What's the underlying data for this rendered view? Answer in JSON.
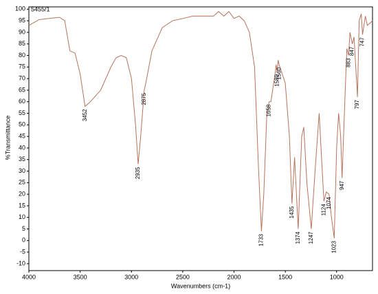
{
  "chart_data": {
    "type": "line",
    "title": "5455/1",
    "title_color": "#d0312d",
    "x_label": "Wavenumbers (cm-1)",
    "y_label": "%Transmittance",
    "color": "#b5735a",
    "x": [
      4000,
      3900,
      3800,
      3700,
      3650,
      3600,
      3550,
      3500,
      3452,
      3400,
      3300,
      3200,
      3150,
      3100,
      3050,
      3000,
      2960,
      2935,
      2910,
      2875,
      2860,
      2800,
      2700,
      2600,
      2500,
      2400,
      2300,
      2200,
      2150,
      2100,
      2050,
      2000,
      1950,
      1900,
      1850,
      1800,
      1760,
      1733,
      1710,
      1680,
      1658,
      1640,
      1600,
      1590,
      1580,
      1570,
      1560,
      1500,
      1460,
      1435,
      1410,
      1374,
      1340,
      1320,
      1290,
      1247,
      1210,
      1170,
      1140,
      1124,
      1100,
      1074,
      1050,
      1023,
      1000,
      980,
      960,
      947,
      920,
      900,
      883,
      870,
      847,
      830,
      800,
      797,
      780,
      760,
      747,
      720,
      700,
      650
    ],
    "values": [
      93,
      95.5,
      96,
      96.5,
      95,
      82,
      81,
      72,
      58,
      60,
      65,
      75,
      79,
      80,
      79,
      70,
      50,
      33,
      45,
      65,
      68,
      82,
      92,
      95,
      96,
      97,
      97,
      97,
      99,
      97,
      99,
      96,
      97,
      95,
      90,
      75,
      30,
      4,
      20,
      55,
      60,
      60,
      72,
      76,
      73,
      78,
      76,
      68,
      45,
      16,
      36,
      5,
      45,
      49,
      25,
      5,
      30,
      55,
      30,
      17,
      21,
      20,
      10,
      1,
      40,
      55,
      45,
      27,
      60,
      83,
      80,
      90,
      85,
      88,
      65,
      62,
      95,
      98,
      89,
      97,
      93,
      95
    ],
    "peak_labels": [
      3452,
      2935,
      2875,
      1733,
      1658,
      1580,
      1560,
      1435,
      1374,
      1247,
      1124,
      1074,
      1023,
      947,
      883,
      847,
      797,
      747
    ],
    "xlim": [
      4000,
      650
    ],
    "xticks": [
      4000,
      3500,
      3000,
      2500,
      2000,
      1500,
      1000
    ],
    "ylim": [
      -13,
      101
    ],
    "yticks": [
      -10,
      -5,
      0,
      5,
      10,
      15,
      20,
      25,
      30,
      35,
      40,
      45,
      50,
      55,
      60,
      65,
      70,
      75,
      80,
      85,
      90,
      95,
      100
    ],
    "grid": false
  }
}
